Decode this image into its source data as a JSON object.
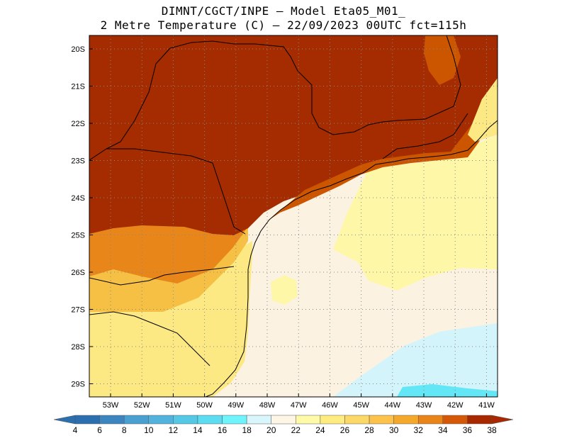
{
  "title": {
    "line1": "DIMNT/CGCT/INPE –  Model Eta05_M01_",
    "line2": "2 Metre Temperature (C) –  22/09/2023 00UTC fct=115h"
  },
  "axes": {
    "lat_labels": [
      "20S",
      "21S",
      "22S",
      "23S",
      "24S",
      "25S",
      "26S",
      "27S",
      "28S",
      "29S"
    ],
    "lon_labels": [
      "53W",
      "52W",
      "51W",
      "50W",
      "49W",
      "48W",
      "47W",
      "46W",
      "45W",
      "44W",
      "43W",
      "42W",
      "41W"
    ]
  },
  "colorbar": {
    "levels": [
      "4",
      "6",
      "8",
      "10",
      "12",
      "14",
      "16",
      "18",
      "20",
      "22",
      "24",
      "26",
      "28",
      "30",
      "32",
      "34",
      "36",
      "38"
    ],
    "colors": [
      "#2c6fae",
      "#3b86c0",
      "#4aa0d0",
      "#52b4dc",
      "#55c8e6",
      "#5cdcf0",
      "#6ef4fa",
      "#d8f6fc",
      "#fdf6e6",
      "#fffaa8",
      "#ffec80",
      "#fcd868",
      "#fcc24c",
      "#f4a82c",
      "#e88418",
      "#d45808",
      "#a82800"
    ]
  },
  "regions": {
    "hot": "#a52b00",
    "warm": "#cc5500",
    "orange": "#e8861a",
    "gold": "#f5c044",
    "yellow": "#fde983",
    "pale_yellow": "#fef7a8",
    "cream": "#fcf2e2",
    "cyan_light": "#d4f4fb",
    "cyan": "#63e7f7"
  }
}
